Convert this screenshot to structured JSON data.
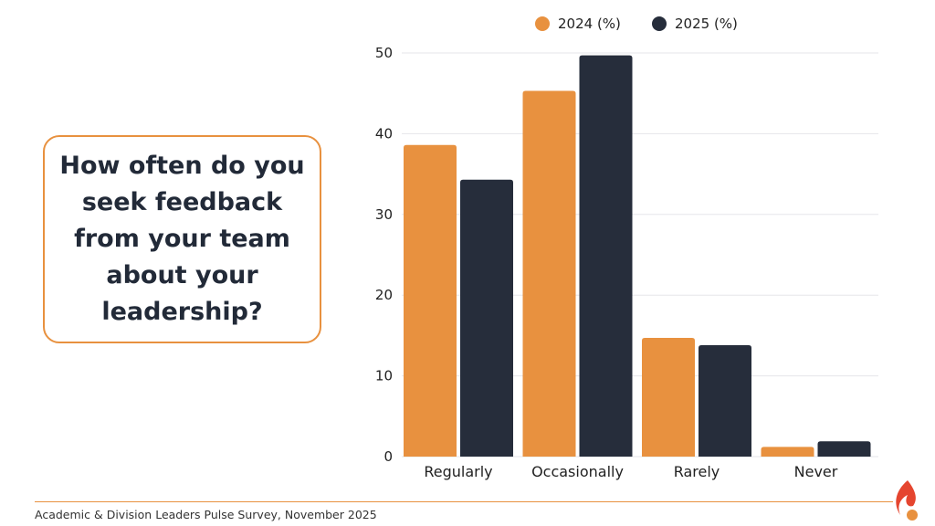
{
  "question": "How often do you seek feedback from your team about your leadership?",
  "footer": "Academic & Division Leaders Pulse Survey, November 2025",
  "colors": {
    "2024": "#e8913f",
    "2025": "#262d3b",
    "accent": "#e8913f"
  },
  "logo": "flame-logo",
  "chart_data": {
    "type": "bar",
    "categories": [
      "Regularly",
      "Occasionally",
      "Rarely",
      "Never"
    ],
    "series": [
      {
        "name": "2024 (%)",
        "values": [
          38.6,
          45.3,
          14.7,
          1.2
        ]
      },
      {
        "name": "2025 (%)",
        "values": [
          34.3,
          49.7,
          13.8,
          1.9
        ]
      }
    ],
    "yticks": [
      "0",
      "10",
      "20",
      "30",
      "40",
      "50"
    ],
    "ylim": [
      0,
      50
    ],
    "grid": true,
    "legend": "top"
  }
}
